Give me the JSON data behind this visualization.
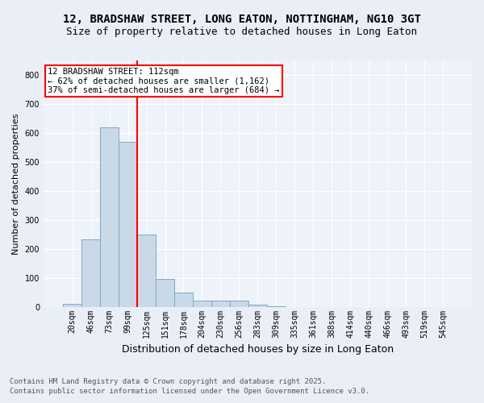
{
  "title_line1": "12, BRADSHAW STREET, LONG EATON, NOTTINGHAM, NG10 3GT",
  "title_line2": "Size of property relative to detached houses in Long Eaton",
  "xlabel": "Distribution of detached houses by size in Long Eaton",
  "ylabel": "Number of detached properties",
  "bar_labels": [
    "20sqm",
    "46sqm",
    "73sqm",
    "99sqm",
    "125sqm",
    "151sqm",
    "178sqm",
    "204sqm",
    "230sqm",
    "256sqm",
    "283sqm",
    "309sqm",
    "335sqm",
    "361sqm",
    "388sqm",
    "414sqm",
    "440sqm",
    "466sqm",
    "493sqm",
    "519sqm",
    "545sqm"
  ],
  "bar_values": [
    10,
    232,
    618,
    570,
    250,
    97,
    50,
    20,
    20,
    22,
    8,
    2,
    0,
    0,
    0,
    0,
    0,
    0,
    0,
    0,
    0
  ],
  "bar_color": "#c9d9e8",
  "bar_edge_color": "#7aaac8",
  "vline_color": "red",
  "vline_x_index": 3.5,
  "annotation_text": "12 BRADSHAW STREET: 112sqm\n← 62% of detached houses are smaller (1,162)\n37% of semi-detached houses are larger (684) →",
  "annotation_box_color": "white",
  "annotation_box_edge": "red",
  "ylim": [
    0,
    850
  ],
  "yticks": [
    0,
    100,
    200,
    300,
    400,
    500,
    600,
    700,
    800
  ],
  "bg_color": "#eaeff7",
  "plot_bg_color": "#eef2f9",
  "grid_color": "white",
  "footer_line1": "Contains HM Land Registry data © Crown copyright and database right 2025.",
  "footer_line2": "Contains public sector information licensed under the Open Government Licence v3.0.",
  "title_fontsize": 10,
  "subtitle_fontsize": 9,
  "axis_label_fontsize": 8,
  "tick_fontsize": 7,
  "annotation_fontsize": 7.5,
  "footer_fontsize": 6.5
}
